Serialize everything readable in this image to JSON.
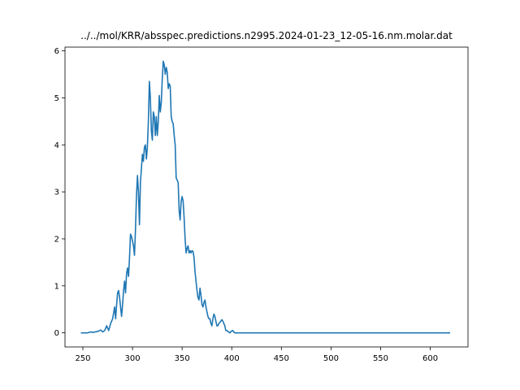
{
  "chart_data": {
    "type": "line",
    "title": "../../mol/KRR/absspec.predictions.n2995.2024-01-23_12-05-16.nm.molar.dat",
    "xlabel": "",
    "ylabel": "",
    "xlim": [
      232,
      638
    ],
    "ylim": [
      -0.3,
      6.08
    ],
    "xticks": [
      250,
      300,
      350,
      400,
      450,
      500,
      550,
      600
    ],
    "yticks": [
      0,
      1,
      2,
      3,
      4,
      5,
      6
    ],
    "grid": false,
    "series": [
      {
        "color": "#1f77b4",
        "x": [
          248,
          255,
          258,
          260,
          265,
          268,
          270,
          272,
          274,
          276,
          278,
          280,
          282,
          283,
          284,
          285,
          286,
          287,
          288,
          289,
          290,
          291,
          292,
          293,
          294,
          295,
          296,
          297,
          298,
          299,
          300,
          301,
          302,
          303,
          304,
          305,
          306,
          307,
          308,
          309,
          310,
          311,
          312,
          313,
          314,
          315,
          316,
          317,
          318,
          319,
          320,
          321,
          322,
          323,
          324,
          325,
          326,
          327,
          328,
          329,
          330,
          331,
          332,
          333,
          334,
          335,
          336,
          337,
          338,
          339,
          340,
          341,
          342,
          343,
          344,
          345,
          346,
          347,
          348,
          349,
          350,
          351,
          352,
          353,
          354,
          355,
          356,
          357,
          358,
          359,
          360,
          361,
          362,
          363,
          364,
          365,
          366,
          367,
          368,
          369,
          370,
          371,
          372,
          373,
          374,
          375,
          376,
          377,
          378,
          379,
          380,
          381,
          382,
          383,
          384,
          385,
          386,
          387,
          388,
          389,
          390,
          391,
          392,
          393,
          394,
          395,
          396,
          397,
          398,
          399,
          400,
          401,
          402,
          403,
          404,
          405,
          406,
          407,
          408,
          409,
          410,
          411,
          412,
          414,
          416,
          418,
          420,
          422,
          424,
          426,
          428,
          430,
          432,
          434,
          436,
          440,
          450,
          500,
          550,
          600,
          620
        ],
        "y": [
          0.0,
          0.0,
          0.02,
          0.01,
          0.03,
          0.06,
          0.02,
          0.05,
          0.15,
          0.05,
          0.2,
          0.3,
          0.55,
          0.3,
          0.6,
          0.85,
          0.9,
          0.75,
          0.55,
          0.35,
          0.6,
          0.9,
          1.1,
          0.85,
          1.25,
          1.38,
          1.2,
          1.6,
          2.1,
          2.05,
          1.95,
          1.85,
          1.65,
          2.2,
          2.9,
          3.35,
          3.0,
          2.3,
          3.2,
          3.5,
          3.8,
          3.65,
          3.95,
          4.0,
          3.7,
          3.95,
          4.5,
          5.35,
          5.0,
          4.3,
          4.1,
          4.7,
          4.6,
          4.2,
          4.6,
          4.2,
          4.5,
          5.05,
          4.7,
          4.9,
          5.4,
          5.78,
          5.7,
          5.5,
          5.65,
          5.55,
          5.2,
          5.3,
          5.25,
          4.6,
          4.5,
          4.45,
          4.2,
          4.0,
          3.3,
          3.25,
          3.2,
          2.6,
          2.4,
          2.8,
          2.9,
          2.8,
          2.45,
          2.0,
          1.7,
          1.8,
          1.85,
          1.7,
          1.75,
          1.7,
          1.75,
          1.73,
          1.6,
          1.3,
          1.1,
          0.9,
          0.75,
          0.7,
          0.95,
          0.8,
          0.6,
          0.55,
          0.65,
          0.7,
          0.55,
          0.45,
          0.35,
          0.3,
          0.3,
          0.2,
          0.15,
          0.3,
          0.4,
          0.35,
          0.25,
          0.15,
          0.15,
          0.2,
          0.22,
          0.25,
          0.28,
          0.25,
          0.2,
          0.15,
          0.05,
          0.05,
          0.03,
          0.02,
          0.0,
          0.02,
          0.04,
          0.05,
          0.02,
          0.0,
          0.0,
          0.0,
          0.0,
          0.0,
          0.0,
          0.0,
          0.0,
          0.0,
          0.0,
          0.0,
          0.0,
          0.0,
          0.0,
          0.0,
          0.0,
          0.0,
          0.0,
          0.0,
          0.0,
          0.0,
          0.0,
          0.0,
          0.0,
          0.0,
          0.0,
          0.0,
          0.0
        ]
      }
    ]
  }
}
